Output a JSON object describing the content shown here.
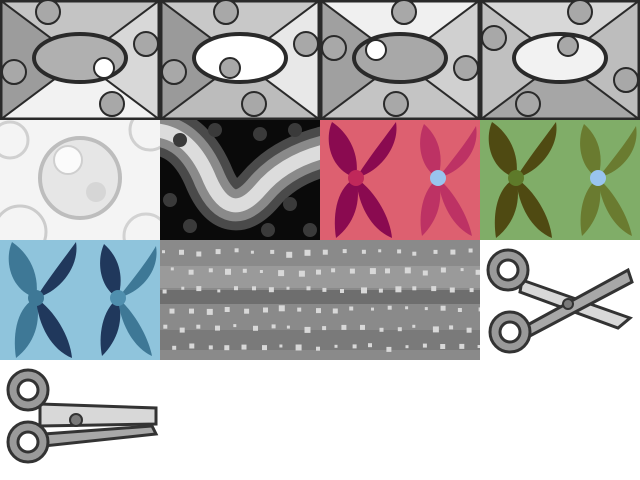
{
  "tiles": [
    {
      "name": "envelope-gray-1",
      "icon": "envelope-pattern-icon"
    },
    {
      "name": "envelope-gray-2",
      "icon": "envelope-pattern-icon"
    },
    {
      "name": "envelope-gray-3",
      "icon": "envelope-pattern-icon"
    },
    {
      "name": "envelope-gray-4",
      "icon": "envelope-pattern-icon"
    },
    {
      "name": "bubbles-white",
      "icon": "bubble-pattern-icon"
    },
    {
      "name": "dark-wave",
      "icon": "wave-pattern-icon"
    },
    {
      "name": "petals-pink",
      "icon": "petal-pattern-icon",
      "colors": {
        "bg": "#dd6070",
        "petal": "#8a0a50",
        "center": "#99c4ee"
      }
    },
    {
      "name": "petals-green",
      "icon": "petal-pattern-icon",
      "colors": {
        "bg": "#80ad68",
        "petal": "#4f4a12",
        "center": "#99c4ee"
      }
    },
    {
      "name": "petals-blue",
      "icon": "petal-pattern-icon",
      "colors": {
        "bg": "#8fc4dc",
        "petal": "#20385c",
        "center": "#4f8fae"
      }
    },
    {
      "name": "dotted-gray-band",
      "icon": "dots-pattern-icon"
    },
    {
      "name": "scissors-open",
      "icon": "scissors-icon"
    },
    {
      "name": "scissors-closed",
      "icon": "scissors-icon"
    }
  ]
}
